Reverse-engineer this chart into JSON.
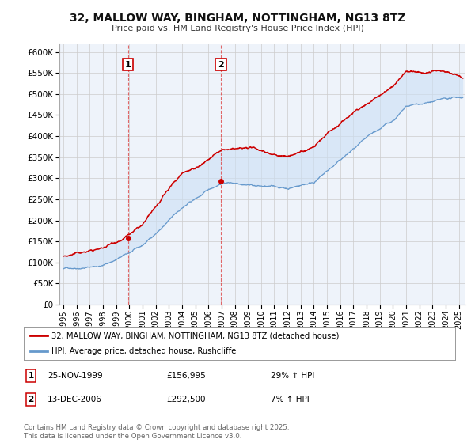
{
  "title": "32, MALLOW WAY, BINGHAM, NOTTINGHAM, NG13 8TZ",
  "subtitle": "Price paid vs. HM Land Registry's House Price Index (HPI)",
  "ylim": [
    0,
    620000
  ],
  "ytick_values": [
    0,
    50000,
    100000,
    150000,
    200000,
    250000,
    300000,
    350000,
    400000,
    450000,
    500000,
    550000,
    600000
  ],
  "xmin": 1994.7,
  "xmax": 2025.5,
  "line1_color": "#cc0000",
  "line2_color": "#6699cc",
  "fill2_color": "#cce0f5",
  "annotation_box_color": "#cc0000",
  "annotation_vline_color": "#dd4444",
  "legend_label1": "32, MALLOW WAY, BINGHAM, NOTTINGHAM, NG13 8TZ (detached house)",
  "legend_label2": "HPI: Average price, detached house, Rushcliffe",
  "ann1_label": "1",
  "ann1_date": "25-NOV-1999",
  "ann1_price": "£156,995",
  "ann1_hpi": "29% ↑ HPI",
  "ann1_x": 1999.9,
  "ann1_y": 156995,
  "ann2_label": "2",
  "ann2_date": "13-DEC-2006",
  "ann2_price": "£292,500",
  "ann2_hpi": "7% ↑ HPI",
  "ann2_x": 2006.95,
  "ann2_y": 292500,
  "footer": "Contains HM Land Registry data © Crown copyright and database right 2025.\nThis data is licensed under the Open Government Licence v3.0.",
  "background_color": "#ffffff",
  "grid_color": "#cccccc",
  "plot_bg_color": "#eef3fa"
}
